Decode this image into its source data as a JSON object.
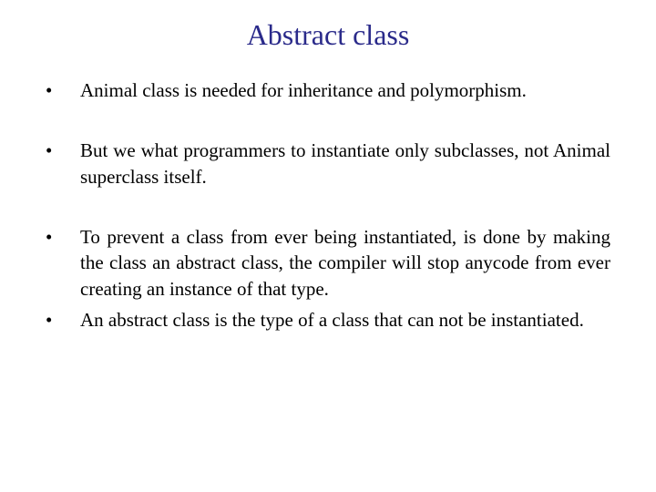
{
  "slide": {
    "title": "Abstract class",
    "title_color": "#2a2a8a",
    "title_fontsize": 32,
    "body_color": "#000000",
    "body_fontsize": 21,
    "bullet_char": "•",
    "items": [
      "Animal class is needed for inheritance and polymorphism.",
      "But we what programmers to instantiate only subclasses, not Animal superclass itself.",
      "To prevent a class from ever being instantiated, is done by making the class an abstract class, the compiler will stop anycode from ever creating an instance of that type.",
      "An abstract class is the type of a class that can not be instantiated."
    ]
  }
}
